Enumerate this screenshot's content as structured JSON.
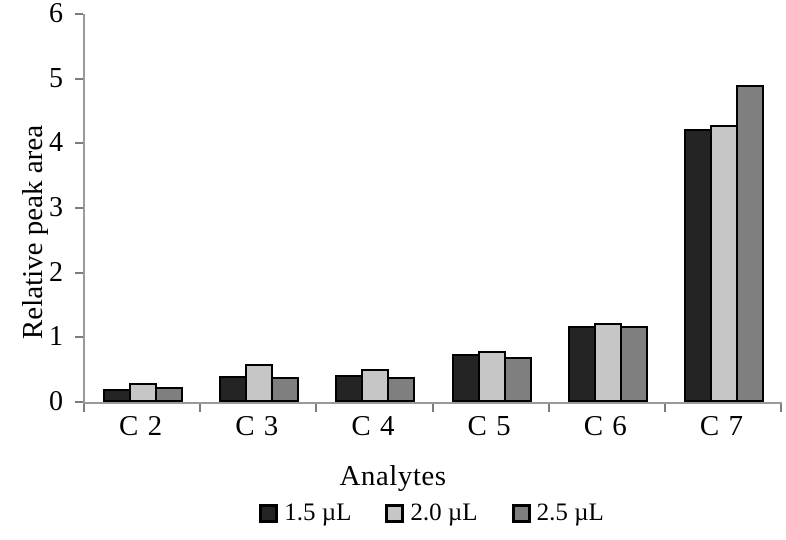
{
  "chart_data": {
    "type": "bar",
    "title": "",
    "xlabel": "Analytes",
    "ylabel": "Relative peak area",
    "categories": [
      "C 2",
      "C 3",
      "C 4",
      "C 5",
      "C 6",
      "C 7"
    ],
    "series": [
      {
        "name": "1.5 µL",
        "color": "#242424",
        "values": [
          0.2,
          0.4,
          0.42,
          0.74,
          1.18,
          4.22
        ]
      },
      {
        "name": "2.0 µL",
        "color": "#c6c6c6",
        "values": [
          0.3,
          0.59,
          0.51,
          0.79,
          1.22,
          4.28
        ]
      },
      {
        "name": "2.5 µL",
        "color": "#7f7f7f",
        "values": [
          0.23,
          0.39,
          0.38,
          0.69,
          1.18,
          4.9
        ]
      }
    ],
    "ylim": [
      0,
      6
    ],
    "yticks": [
      0,
      1,
      2,
      3,
      4,
      5,
      6
    ],
    "grid": false,
    "legend_position": "bottom",
    "bar_border_color": "#000000",
    "axis_color": "#9a9a9a",
    "background_color": "#ffffff"
  }
}
